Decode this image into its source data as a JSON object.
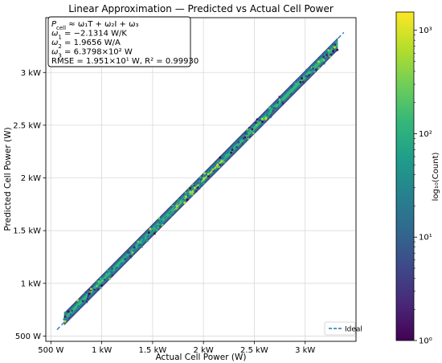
{
  "chart_data": {
    "type": "heatmap",
    "title": "Linear Approximation — Predicted vs Actual Cell Power",
    "xlabel": "Actual Cell Power (W)",
    "ylabel": "Predicted Cell Power (W)",
    "xlim": [
      450,
      3500
    ],
    "ylim": [
      450,
      3520
    ],
    "x_ticks": [
      {
        "v": 500,
        "label": "500 W"
      },
      {
        "v": 1000,
        "label": "1 kW"
      },
      {
        "v": 1500,
        "label": "1.5 kW"
      },
      {
        "v": 2000,
        "label": "2 kW"
      },
      {
        "v": 2500,
        "label": "2.5 kW"
      },
      {
        "v": 3000,
        "label": "3 kW"
      }
    ],
    "y_ticks": [
      {
        "v": 500,
        "label": "500 W"
      },
      {
        "v": 1000,
        "label": "1 kW"
      },
      {
        "v": 1500,
        "label": "1.5 kW"
      },
      {
        "v": 2000,
        "label": "2 kW"
      },
      {
        "v": 2500,
        "label": "2.5 kW"
      },
      {
        "v": 3000,
        "label": "3 kW"
      }
    ],
    "grid": true,
    "legend": {
      "placement": "lower-right",
      "entries": [
        {
          "label": "Ideal",
          "style": "dashed",
          "color": "#1f77b4"
        }
      ]
    },
    "ideal_line": {
      "x": [
        560,
        3380
      ],
      "y": [
        560,
        3380
      ]
    },
    "hexbin_band": {
      "x_range": [
        630,
        3320
      ],
      "fit_line": {
        "x": [
          630,
          3320
        ],
        "y": [
          660,
          3270
        ]
      },
      "spread_wide": 60,
      "spread_mid": 20,
      "colormap": "viridis"
    },
    "annotation_lines": [
      {
        "lhs": "P",
        "sub": "cell",
        "rhs": " ≈ ω₁T + ω₂I + ω₃"
      },
      {
        "lhs": "ω",
        "sub": "1",
        "rhs": " = −2.1314 W/K"
      },
      {
        "lhs": "ω",
        "sub": "2",
        "rhs": " = 1.9656 W/A"
      },
      {
        "lhs": "ω",
        "sub": "3",
        "rhs": " = 6.3798×10² W"
      },
      {
        "lhs": "",
        "sub": "",
        "rhs": "RMSE = 1.951×10¹ W,  R² = 0.99930"
      }
    ],
    "colorbar": {
      "label": "log₁₀(Count)",
      "scale": "log",
      "range": [
        1,
        1500
      ],
      "ticks": [
        {
          "v": 1,
          "label": "10⁰"
        },
        {
          "v": 10,
          "label": "10¹"
        },
        {
          "v": 100,
          "label": "10²"
        },
        {
          "v": 1000,
          "label": "10³"
        }
      ],
      "colors": [
        "#440154",
        "#482878",
        "#3e4989",
        "#31688e",
        "#26828e",
        "#1f9e89",
        "#35b779",
        "#6ece58",
        "#b5de2b",
        "#fde725"
      ]
    }
  }
}
